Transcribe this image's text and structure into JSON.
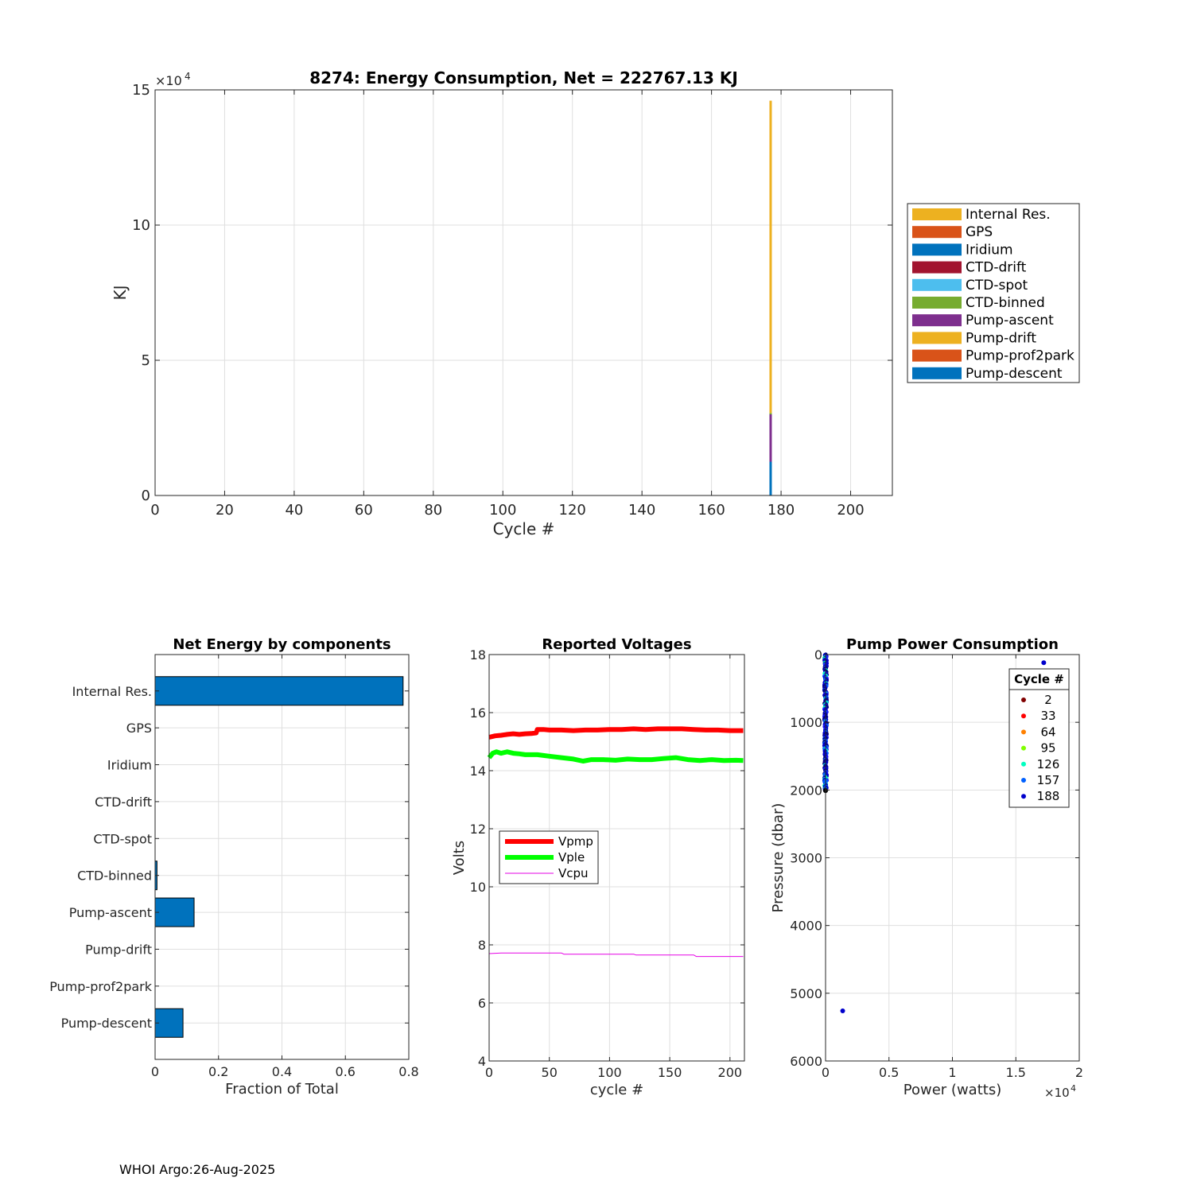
{
  "footer": "WHOI Argo:26-Aug-2025",
  "chart_data": [
    {
      "type": "bar",
      "stacked": true,
      "title": "8274: Energy Consumption,  Net = 222767.13 KJ",
      "xlabel": "Cycle #",
      "ylabel": "KJ",
      "xlim": [
        0,
        212
      ],
      "ylim": [
        0,
        150000
      ],
      "x_ticks": [
        0,
        20,
        40,
        60,
        80,
        100,
        120,
        140,
        160,
        180,
        200
      ],
      "y_ticks": [
        0,
        5,
        10,
        15
      ],
      "y_tick_labels": [
        "0",
        "5",
        "10",
        "15"
      ],
      "y_exponent": "4",
      "grid": true,
      "legend_position": "right-outside",
      "legend": [
        "Internal Res.",
        "GPS",
        "Iridium",
        "CTD-drift",
        "CTD-spot",
        "CTD-binned",
        "Pump-ascent",
        "Pump-drift",
        "Pump-prof2park",
        "Pump-descent"
      ],
      "bars": [
        {
          "x": 177,
          "segments": [
            {
              "name": "Pump-descent",
              "value": 12500,
              "color": "#0072BD"
            },
            {
              "name": "Pump-ascent",
              "value": 17500,
              "color": "#7E2F8E"
            },
            {
              "name": "CTD-binned",
              "value": 500,
              "color": "#77AC30"
            },
            {
              "name": "Internal Res.",
              "value": 115500,
              "color": "#EDB120"
            }
          ]
        }
      ],
      "series_colors": {
        "Internal Res.": "#EDB120",
        "GPS": "#D95319",
        "Iridium": "#0072BD",
        "CTD-drift": "#A2142F",
        "CTD-spot": "#4DBEEE",
        "CTD-binned": "#77AC30",
        "Pump-ascent": "#7E2F8E",
        "Pump-drift": "#EDB120",
        "Pump-prof2park": "#D95319",
        "Pump-descent": "#0072BD"
      }
    },
    {
      "type": "bar",
      "orientation": "horizontal",
      "title": "Net Energy by components",
      "xlabel": "Fraction of Total",
      "xlim": [
        0,
        0.8
      ],
      "x_ticks": [
        0,
        0.2,
        0.4,
        0.6,
        0.8
      ],
      "x_tick_labels": [
        "0",
        "0.2",
        "0.4",
        "0.6",
        "0.8"
      ],
      "grid": true,
      "color": "#0072BD",
      "categories": [
        "Internal Res.",
        "GPS",
        "Iridium",
        "CTD-drift",
        "CTD-spot",
        "CTD-binned",
        "Pump-ascent",
        "Pump-drift",
        "Pump-prof2park",
        "Pump-descent"
      ],
      "values": [
        0.782,
        0,
        0,
        0,
        0,
        0.006,
        0.123,
        0,
        0,
        0.088
      ]
    },
    {
      "type": "line",
      "title": "Reported Voltages",
      "xlabel": "cycle #",
      "ylabel": "Volts",
      "xlim": [
        0,
        212
      ],
      "ylim": [
        4,
        18
      ],
      "x_ticks": [
        0,
        50,
        100,
        150,
        200
      ],
      "y_ticks": [
        4,
        6,
        8,
        10,
        12,
        14,
        16,
        18
      ],
      "grid": true,
      "legend_position": "middle-left",
      "series": [
        {
          "name": "Vpmp",
          "color": "#FF0000",
          "width": 6,
          "x": [
            0,
            5,
            10,
            15,
            20,
            25,
            30,
            35,
            39,
            40,
            45,
            50,
            60,
            70,
            80,
            90,
            100,
            110,
            120,
            130,
            140,
            150,
            160,
            170,
            180,
            190,
            200,
            211
          ],
          "y": [
            15.15,
            15.2,
            15.22,
            15.25,
            15.27,
            15.25,
            15.27,
            15.28,
            15.3,
            15.42,
            15.42,
            15.4,
            15.4,
            15.38,
            15.4,
            15.4,
            15.42,
            15.42,
            15.44,
            15.42,
            15.44,
            15.44,
            15.44,
            15.42,
            15.4,
            15.4,
            15.38,
            15.38
          ]
        },
        {
          "name": "Vple",
          "color": "#00FF00",
          "width": 6,
          "x": [
            0,
            3,
            6,
            10,
            15,
            20,
            25,
            30,
            40,
            50,
            60,
            70,
            78,
            85,
            95,
            105,
            115,
            125,
            135,
            145,
            155,
            165,
            175,
            185,
            195,
            205,
            211
          ],
          "y": [
            14.45,
            14.6,
            14.65,
            14.6,
            14.65,
            14.6,
            14.58,
            14.55,
            14.55,
            14.5,
            14.45,
            14.4,
            14.33,
            14.38,
            14.38,
            14.36,
            14.4,
            14.38,
            14.38,
            14.42,
            14.45,
            14.38,
            14.35,
            14.38,
            14.35,
            14.36,
            14.35
          ]
        },
        {
          "name": "Vcpu",
          "color": "#E600E6",
          "width": 1,
          "x": [
            0,
            10,
            30,
            60,
            62,
            100,
            120,
            122,
            160,
            170,
            172,
            200,
            211
          ],
          "y": [
            7.7,
            7.72,
            7.72,
            7.72,
            7.68,
            7.68,
            7.68,
            7.65,
            7.65,
            7.65,
            7.6,
            7.6,
            7.6
          ]
        }
      ]
    },
    {
      "type": "scatter",
      "title": "Pump Power Consumption",
      "xlabel": "Power (watts)",
      "ylabel": "Pressure (dbar)",
      "xlim": [
        0,
        20000
      ],
      "ylim": [
        0,
        6000
      ],
      "y_reversed": true,
      "x_ticks": [
        0,
        0.5,
        1,
        1.5,
        2
      ],
      "x_tick_labels": [
        "0",
        "0.5",
        "1",
        "1.5",
        "2"
      ],
      "x_exponent": "4",
      "y_ticks": [
        0,
        1000,
        2000,
        3000,
        4000,
        5000,
        6000
      ],
      "grid": true,
      "legend_title": "Cycle #",
      "legend_position": "top-right",
      "legend": [
        {
          "label": "2",
          "color": "#800000"
        },
        {
          "label": "33",
          "color": "#FF0000"
        },
        {
          "label": "64",
          "color": "#FF8000"
        },
        {
          "label": "95",
          "color": "#80FF00"
        },
        {
          "label": "126",
          "color": "#00FFC0"
        },
        {
          "label": "157",
          "color": "#0060FF"
        },
        {
          "label": "188",
          "color": "#0000CC"
        }
      ],
      "dense_column": {
        "x": 0,
        "p_min": 0,
        "p_max": 2000,
        "colors": [
          "#0000CC",
          "#0000CC",
          "#1A1AFF",
          "#000080",
          "#0060FF",
          "#00FFC0",
          "#000080",
          "#0000CC"
        ]
      },
      "points": [
        {
          "x": 17200,
          "y": 120,
          "color": "#0000CC"
        },
        {
          "x": 1350,
          "y": 5260,
          "color": "#0000CC"
        },
        {
          "x": 0,
          "y": 2010,
          "color": "#000000"
        },
        {
          "x": 0,
          "y": 1870,
          "color": "#0060FF"
        }
      ]
    }
  ]
}
